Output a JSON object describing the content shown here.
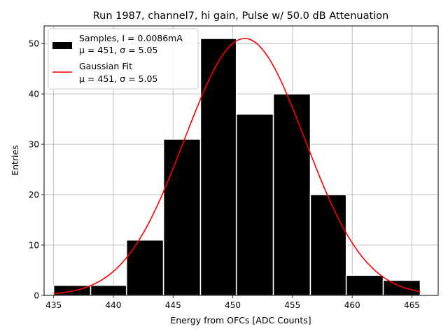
{
  "chart_data": {
    "type": "bar",
    "title": "Run 1987, channel7, hi gain, Pulse w/ 50.0 dB Attenuation",
    "xlabel": "Energy from OFCs [ADC Counts]",
    "ylabel": "Entries",
    "xlim": [
      434.2,
      467.2
    ],
    "ylim": [
      0,
      53.5
    ],
    "x_ticks": [
      435,
      440,
      445,
      450,
      455,
      460,
      465
    ],
    "y_ticks": [
      0,
      10,
      20,
      30,
      40,
      50
    ],
    "grid": true,
    "legend_position": "top-left",
    "bins": [
      {
        "x0": 435.0,
        "x1": 438.1,
        "count": 2
      },
      {
        "x0": 438.1,
        "x1": 441.1,
        "count": 2
      },
      {
        "x0": 441.1,
        "x1": 444.2,
        "count": 11
      },
      {
        "x0": 444.2,
        "x1": 447.3,
        "count": 31
      },
      {
        "x0": 447.3,
        "x1": 450.3,
        "count": 51
      },
      {
        "x0": 450.3,
        "x1": 453.4,
        "count": 36
      },
      {
        "x0": 453.4,
        "x1": 456.5,
        "count": 40
      },
      {
        "x0": 456.5,
        "x1": 459.5,
        "count": 20
      },
      {
        "x0": 459.5,
        "x1": 462.6,
        "count": 4
      },
      {
        "x0": 462.6,
        "x1": 465.7,
        "count": 3
      }
    ],
    "fit": {
      "mu": 451.0,
      "sigma": 5.05,
      "amplitude": 51.0,
      "x_range": [
        435.0,
        465.7
      ]
    },
    "colors": {
      "bars": "#000000",
      "bar_edge": "#ffffff",
      "fit": "#ff0000",
      "grid": "#b0b0b0"
    },
    "legend": [
      {
        "line1": "Samples, I = 0.0086mA",
        "line2": "μ = 451, σ = 5.05"
      },
      {
        "line1": "Gaussian Fit",
        "line2": "μ = 451, σ = 5.05"
      }
    ]
  }
}
